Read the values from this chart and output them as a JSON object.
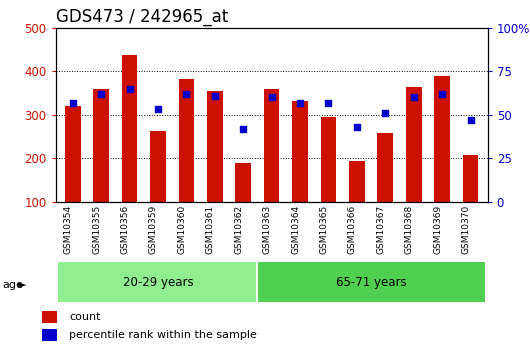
{
  "title": "GDS473 / 242965_at",
  "categories": [
    "GSM10354",
    "GSM10355",
    "GSM10356",
    "GSM10359",
    "GSM10360",
    "GSM10361",
    "GSM10362",
    "GSM10363",
    "GSM10364",
    "GSM10365",
    "GSM10366",
    "GSM10367",
    "GSM10368",
    "GSM10369",
    "GSM10370"
  ],
  "bar_values": [
    320,
    358,
    437,
    263,
    383,
    354,
    188,
    360,
    332,
    295,
    193,
    257,
    363,
    390,
    207
  ],
  "percentile_values": [
    57,
    62,
    65,
    53,
    62,
    61,
    42,
    60,
    57,
    57,
    43,
    51,
    60,
    62,
    47
  ],
  "bar_color": "#cc1100",
  "marker_color": "#0000cc",
  "groups": [
    {
      "label": "20-29 years",
      "start": 0,
      "end": 7
    },
    {
      "label": "65-71 years",
      "start": 7,
      "end": 15
    }
  ],
  "group_colors": [
    "#90ee90",
    "#50d050"
  ],
  "age_label": "age",
  "ylim_left": [
    100,
    500
  ],
  "ylim_right": [
    0,
    100
  ],
  "yticks_left": [
    100,
    200,
    300,
    400,
    500
  ],
  "yticks_right": [
    0,
    25,
    50,
    75,
    100
  ],
  "yticklabels_right": [
    "0",
    "25",
    "50",
    "75",
    "100%"
  ],
  "legend_labels": [
    "count",
    "percentile rank within the sample"
  ],
  "bar_width": 0.55,
  "tick_label_area_color": "#cccccc",
  "title_fontsize": 12
}
